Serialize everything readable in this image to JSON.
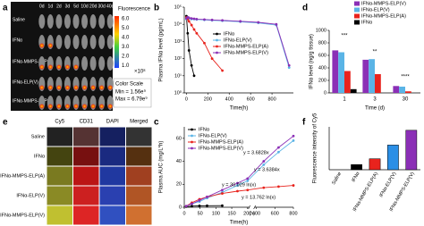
{
  "panel_a": {
    "label": "a",
    "days": [
      "0d",
      "1d",
      "2d",
      "3d",
      "5d",
      "10d",
      "20d",
      "30d",
      "40d"
    ],
    "groups": [
      "Saline",
      "IFNα",
      "IFNα-MMPS-ELP(A)",
      "IFNα-ELP(V)",
      "IFNα-MMPS-ELP(V)"
    ],
    "scale_title": "Fluorescence",
    "scale_ticks": [
      "6.0",
      "5.0",
      "4.0",
      "3.0",
      "2.0",
      "1.0"
    ],
    "scale_unit": "×10⁸",
    "color_scale": "Color Scale",
    "min": "Min = 1.56e⁹",
    "max": "Max = 6.79e⁹"
  },
  "panel_e": {
    "label": "e",
    "channels": [
      "Cy5",
      "CD31",
      "DAPI",
      "Merged"
    ],
    "groups": [
      "Saline",
      "IFNα",
      "IFNα-MMPS-ELP(A)",
      "IFNα-ELP(V)",
      "IFNα-MMPS-ELP(V)"
    ]
  },
  "chart_data": [
    {
      "label": "b",
      "type": "line",
      "ylabel": "Plasma IFNα level (pg/mL)",
      "xlabel": "Time(h)",
      "log_y": true,
      "xlim": [
        -20,
        1000
      ],
      "xticks": [
        0,
        200,
        400,
        600,
        800
      ],
      "ylim": [
        1,
        100000
      ],
      "yticks": [
        {
          "value": 1,
          "label": "10⁰"
        },
        {
          "value": 10,
          "label": "10¹"
        },
        {
          "value": 100,
          "label": "10²"
        },
        {
          "value": 1000,
          "label": "10³"
        },
        {
          "value": 10000,
          "label": "10⁴"
        },
        {
          "value": 100000,
          "label": "10⁵"
        }
      ],
      "x": [
        0,
        12,
        24,
        48,
        72,
        96,
        168,
        240,
        336,
        504,
        672,
        840,
        960
      ],
      "series": [
        {
          "name": "IFNα",
          "color": "#000000",
          "values": [
            30000,
            3000,
            300,
            40,
            10,
            null,
            null,
            null,
            null,
            null,
            null,
            null,
            null
          ]
        },
        {
          "name": "IFNα-ELP(V)",
          "color": "#5ab4e6",
          "values": [
            20000,
            25000,
            22000,
            20000,
            20000,
            19000,
            18000,
            17000,
            16000,
            14000,
            12000,
            9000,
            30
          ]
        },
        {
          "name": "IFNα-MMPS-ELP(A)",
          "color": "#e8231d",
          "values": [
            25000,
            20000,
            15000,
            9000,
            5000,
            3000,
            800,
            100,
            20,
            null,
            null,
            null,
            null
          ]
        },
        {
          "name": "IFNα-MMPS-ELP(V)",
          "color": "#8b2fb6",
          "values": [
            22000,
            26000,
            24000,
            22000,
            21000,
            20000,
            19000,
            18000,
            17000,
            15000,
            13000,
            10000,
            40
          ]
        }
      ]
    },
    {
      "label": "c",
      "type": "line",
      "ylabel": "Plasma AUC (mg/L*h)",
      "xlabel": "Time(h)",
      "x_break": [
        200,
        400
      ],
      "x_break_label": "(h)",
      "xlim": [
        0,
        800
      ],
      "xticks": [
        0,
        50,
        100,
        150,
        200,
        400,
        600,
        800
      ],
      "ylim": [
        0,
        70
      ],
      "yticks": [
        0,
        20,
        40,
        60
      ],
      "x": [
        6,
        24,
        48,
        72,
        120,
        168,
        200,
        480,
        640,
        800
      ],
      "series": [
        {
          "name": "IFNα",
          "color": "#000000",
          "values": [
            0.5,
            1,
            1.2,
            1.3,
            1.4,
            null,
            null,
            null,
            null,
            null
          ]
        },
        {
          "name": "IFNα-ELP(V)",
          "color": "#5ab4e6",
          "values": [
            1,
            3,
            5,
            8,
            13,
            19,
            23,
            37,
            48,
            58
          ]
        },
        {
          "name": "IFNα-MMPS-ELP(A)",
          "color": "#e8231d",
          "values": [
            1,
            4,
            7,
            9,
            12,
            14,
            15,
            17,
            18,
            19
          ]
        },
        {
          "name": "IFNα-MMPS-ELP(V)",
          "color": "#8b2fb6",
          "values": [
            1,
            3,
            6,
            9,
            15,
            21,
            25,
            40,
            52,
            62
          ]
        }
      ],
      "annotations": [
        "y = 3.6828x",
        "y = 3.6384x",
        "y = 30.029 ln(x)",
        "y = 13.762 ln(x)"
      ]
    },
    {
      "label": "d",
      "type": "grouped_bar",
      "ylabel": "IFNα level (ng/g tissue)",
      "xlabel": "Time (d)",
      "categories": [
        "1",
        "3",
        "30"
      ],
      "ylim": [
        0,
        1000
      ],
      "yticks": [
        0,
        200,
        400,
        600,
        800,
        1000
      ],
      "series": [
        {
          "name": "IFNα-MMPS-ELP(V)",
          "color": "#8b2fb6",
          "values": [
            680,
            530,
            110
          ]
        },
        {
          "name": "IFNα-ELP(V)",
          "color": "#5ab4e6",
          "values": [
            650,
            540,
            100
          ]
        },
        {
          "name": "IFNα-MMPS-ELP(A)",
          "color": "#e8231d",
          "values": [
            350,
            300,
            25
          ]
        },
        {
          "name": "IFNα",
          "color": "#000000",
          "values": [
            60,
            0,
            0
          ]
        }
      ],
      "annotations": [
        "***",
        "**",
        "****"
      ]
    },
    {
      "label": "f",
      "type": "bar",
      "ylabel": "Fluorescence intensity of Cy5",
      "categories": [
        "Saline",
        "IFNα",
        "IFNα-MMPS-ELP(A)",
        "IFNα-ELP(V)",
        "IFNα-MMPS-ELP(V)"
      ],
      "values": [
        0,
        0.15,
        0.32,
        0.72,
        1.15
      ],
      "colors": [
        "#ffffff",
        "#000000",
        "#e8231d",
        "#2b8fe6",
        "#8b2fb6"
      ],
      "ylim": [
        0,
        1.25
      ]
    }
  ]
}
